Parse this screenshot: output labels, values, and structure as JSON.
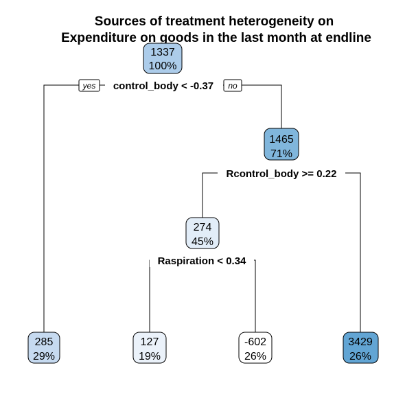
{
  "title": {
    "line1": "Sources of treatment heterogeneity on",
    "line2": "Expenditure on goods in the last month at endline"
  },
  "branch_labels": {
    "yes": "yes",
    "no": "no"
  },
  "nodes": {
    "root": {
      "value": "1337",
      "percent": "100%",
      "fill": "#acccea"
    },
    "n1465": {
      "value": "1465",
      "percent": "71%",
      "fill": "#80b6dc"
    },
    "n274": {
      "value": "274",
      "percent": "45%",
      "fill": "#e2edf8"
    },
    "l285": {
      "value": "285",
      "percent": "29%",
      "fill": "#c6daf0"
    },
    "l127": {
      "value": "127",
      "percent": "19%",
      "fill": "#ebf2fa"
    },
    "lm602": {
      "value": "-602",
      "percent": "26%",
      "fill": "#ffffff"
    },
    "l3429": {
      "value": "3429",
      "percent": "26%",
      "fill": "#62a5d4"
    }
  },
  "splits": {
    "root": "control_body < -0.37",
    "n1465": "Rcontrol_body >= 0.22",
    "n274": "Raspiration < 0.34"
  }
}
